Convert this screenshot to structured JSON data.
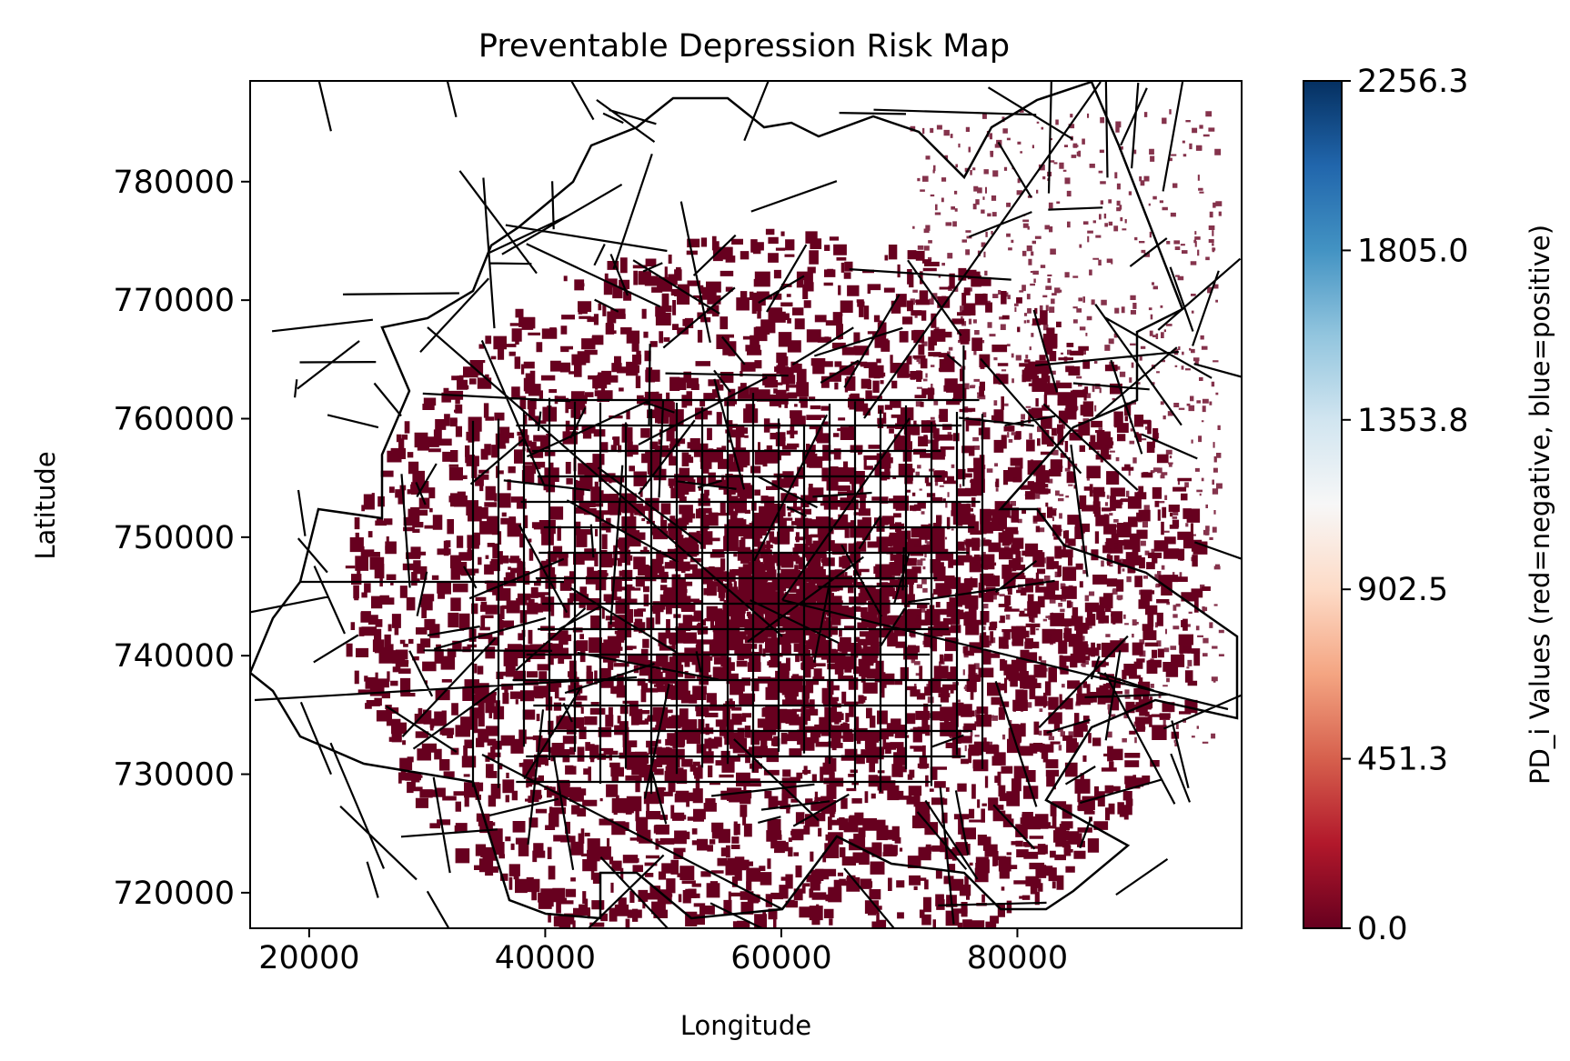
{
  "chart_data": {
    "type": "heatmap",
    "subtype": "choropleth-map",
    "title": "Preventable Depression Risk Map",
    "xlabel": "Longitude",
    "ylabel": "Latitude",
    "xlim": [
      15000,
      99000
    ],
    "ylim": [
      717000,
      788500
    ],
    "x_ticks": [
      20000,
      40000,
      60000,
      80000
    ],
    "x_tick_labels": [
      "20000",
      "40000",
      "60000",
      "80000"
    ],
    "y_ticks": [
      720000,
      730000,
      740000,
      750000,
      760000,
      770000,
      780000
    ],
    "y_tick_labels": [
      "720000",
      "730000",
      "740000",
      "750000",
      "760000",
      "770000",
      "780000"
    ],
    "grid": false,
    "fill_color": "#67001f",
    "boundary_color": "#000000",
    "colorbar": {
      "label": "PD_i Values (red=negative, blue=positive)",
      "colormap": "RdBu",
      "range": [
        0.0,
        2256.3
      ],
      "ticks": [
        0.0,
        451.3,
        902.5,
        1353.8,
        1805.0,
        2256.3
      ],
      "tick_labels": [
        "0.0",
        "451.3",
        "902.5",
        "1353.8",
        "1805.0",
        "2256.3"
      ],
      "colors": [
        "#67001f",
        "#b2182b",
        "#d6604d",
        "#f4a582",
        "#fddbc7",
        "#f7f7f7",
        "#d1e5f0",
        "#92c5de",
        "#4393c3",
        "#2166ac",
        "#053061"
      ]
    }
  }
}
